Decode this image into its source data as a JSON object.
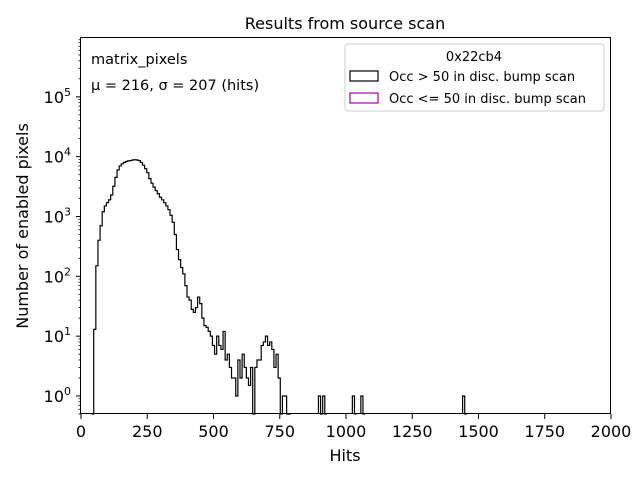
{
  "chart_data": {
    "type": "histogram",
    "title": "Results from source scan",
    "xlabel": "Hits",
    "ylabel": "Number of enabled pixels",
    "xlim": [
      0,
      2000
    ],
    "ylim": [
      0.5,
      1000000
    ],
    "yscale": "log",
    "grid": false,
    "x_ticks": [
      "0",
      "250",
      "500",
      "750",
      "1000",
      "1250",
      "1500",
      "1750",
      "2000"
    ],
    "x_tick_values": [
      0,
      250,
      500,
      750,
      1000,
      1250,
      1500,
      1750,
      2000
    ],
    "y_tick_values": [
      1,
      10,
      100,
      1000,
      10000,
      100000
    ],
    "y_tick_labels": [
      {
        "base": "10",
        "exp": "0"
      },
      {
        "base": "10",
        "exp": "1"
      },
      {
        "base": "10",
        "exp": "2"
      },
      {
        "base": "10",
        "exp": "3"
      },
      {
        "base": "10",
        "exp": "4"
      },
      {
        "base": "10",
        "exp": "5"
      }
    ],
    "annotations": {
      "name": "matrix_pixels",
      "stats": "μ = 216, σ = 207 (hits)"
    },
    "legend": {
      "title": "0x22cb4",
      "placement": "upper-right",
      "entries": [
        {
          "label": "Occ > 50 in disc. bump scan",
          "color": "#000000"
        },
        {
          "label": "Occ <= 50 in disc. bump scan",
          "color": "#a000a0"
        }
      ]
    },
    "series": [
      {
        "name": "Occ > 50 in disc. bump scan",
        "color": "#000000",
        "bin_width": 8,
        "bins": [
          [
            40,
            0.5
          ],
          [
            48,
            13
          ],
          [
            56,
            150
          ],
          [
            64,
            400
          ],
          [
            72,
            700
          ],
          [
            80,
            1200
          ],
          [
            88,
            1500
          ],
          [
            96,
            1700
          ],
          [
            104,
            1900
          ],
          [
            112,
            2300
          ],
          [
            120,
            3200
          ],
          [
            128,
            4500
          ],
          [
            136,
            6000
          ],
          [
            144,
            7000
          ],
          [
            152,
            7600
          ],
          [
            160,
            8000
          ],
          [
            168,
            8300
          ],
          [
            176,
            8500
          ],
          [
            184,
            8600
          ],
          [
            192,
            8800
          ],
          [
            200,
            8900
          ],
          [
            208,
            8800
          ],
          [
            216,
            8600
          ],
          [
            224,
            8000
          ],
          [
            232,
            7200
          ],
          [
            240,
            6300
          ],
          [
            248,
            5400
          ],
          [
            256,
            4300
          ],
          [
            264,
            3600
          ],
          [
            272,
            3100
          ],
          [
            280,
            2700
          ],
          [
            288,
            2400
          ],
          [
            296,
            2100
          ],
          [
            304,
            1900
          ],
          [
            312,
            1700
          ],
          [
            320,
            1500
          ],
          [
            328,
            1300
          ],
          [
            336,
            1050
          ],
          [
            344,
            800
          ],
          [
            352,
            500
          ],
          [
            360,
            280
          ],
          [
            368,
            190
          ],
          [
            376,
            140
          ],
          [
            384,
            110
          ],
          [
            392,
            70
          ],
          [
            400,
            45
          ],
          [
            408,
            40
          ],
          [
            416,
            28
          ],
          [
            424,
            25
          ],
          [
            432,
            30
          ],
          [
            440,
            45
          ],
          [
            448,
            35
          ],
          [
            456,
            20
          ],
          [
            464,
            15
          ],
          [
            472,
            14
          ],
          [
            480,
            12
          ],
          [
            488,
            10
          ],
          [
            496,
            7
          ],
          [
            504,
            5
          ],
          [
            512,
            10
          ],
          [
            520,
            7
          ],
          [
            528,
            6
          ],
          [
            536,
            12
          ],
          [
            544,
            4
          ],
          [
            552,
            5
          ],
          [
            560,
            3
          ],
          [
            568,
            2
          ],
          [
            576,
            2
          ],
          [
            584,
            1
          ],
          [
            592,
            4
          ],
          [
            600,
            2
          ],
          [
            608,
            5
          ],
          [
            616,
            3
          ],
          [
            624,
            2
          ],
          [
            632,
            1.5
          ],
          [
            640,
            3
          ],
          [
            648,
            0.5
          ],
          [
            656,
            3
          ],
          [
            664,
            4
          ],
          [
            672,
            4
          ],
          [
            680,
            7
          ],
          [
            688,
            8
          ],
          [
            696,
            10
          ],
          [
            704,
            7
          ],
          [
            712,
            8
          ],
          [
            720,
            6
          ],
          [
            728,
            3
          ],
          [
            736,
            5
          ],
          [
            744,
            2
          ],
          [
            752,
            0.5
          ],
          [
            760,
            1
          ],
          [
            768,
            1
          ],
          [
            776,
            0.5
          ],
          [
            784,
            0.5
          ],
          [
            896,
            1
          ],
          [
            904,
            0.5
          ],
          [
            912,
            1
          ],
          [
            920,
            0.5
          ],
          [
            1024,
            1
          ],
          [
            1032,
            0.5
          ],
          [
            1056,
            1
          ],
          [
            1064,
            0.5
          ],
          [
            1440,
            1
          ],
          [
            1448,
            0.5
          ]
        ]
      },
      {
        "name": "Occ <= 50 in disc. bump scan",
        "color": "#a000a0",
        "bin_width": 8,
        "bins": []
      }
    ]
  }
}
